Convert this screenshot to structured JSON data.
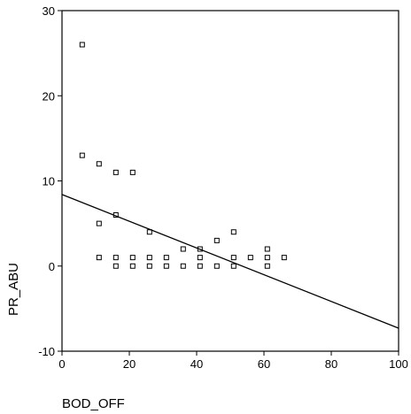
{
  "chart_data": {
    "type": "scatter",
    "title": "",
    "xlabel": "BOD_OFF",
    "ylabel": "PR_ABU",
    "xlim": [
      0,
      100
    ],
    "ylim": [
      -10,
      30
    ],
    "xticks": [
      0,
      20,
      40,
      60,
      80,
      100
    ],
    "yticks": [
      -10,
      0,
      10,
      20,
      30
    ],
    "grid": false,
    "legend": "none",
    "marker": "open-square",
    "points": [
      [
        6,
        26
      ],
      [
        6,
        13
      ],
      [
        11,
        12
      ],
      [
        16,
        11
      ],
      [
        21,
        11
      ],
      [
        11,
        5
      ],
      [
        16,
        6
      ],
      [
        26,
        4
      ],
      [
        11,
        1
      ],
      [
        16,
        1
      ],
      [
        21,
        1
      ],
      [
        26,
        1
      ],
      [
        31,
        1
      ],
      [
        36,
        2
      ],
      [
        41,
        2
      ],
      [
        41,
        1
      ],
      [
        46,
        3
      ],
      [
        51,
        4
      ],
      [
        51,
        1
      ],
      [
        56,
        1
      ],
      [
        61,
        2
      ],
      [
        61,
        1
      ],
      [
        66,
        1
      ],
      [
        16,
        0
      ],
      [
        21,
        0
      ],
      [
        26,
        0
      ],
      [
        31,
        0
      ],
      [
        36,
        0
      ],
      [
        41,
        0
      ],
      [
        46,
        0
      ],
      [
        51,
        0
      ],
      [
        61,
        0
      ]
    ],
    "fit_line": {
      "x": [
        0,
        100
      ],
      "y": [
        8.4,
        -7.3
      ]
    }
  }
}
